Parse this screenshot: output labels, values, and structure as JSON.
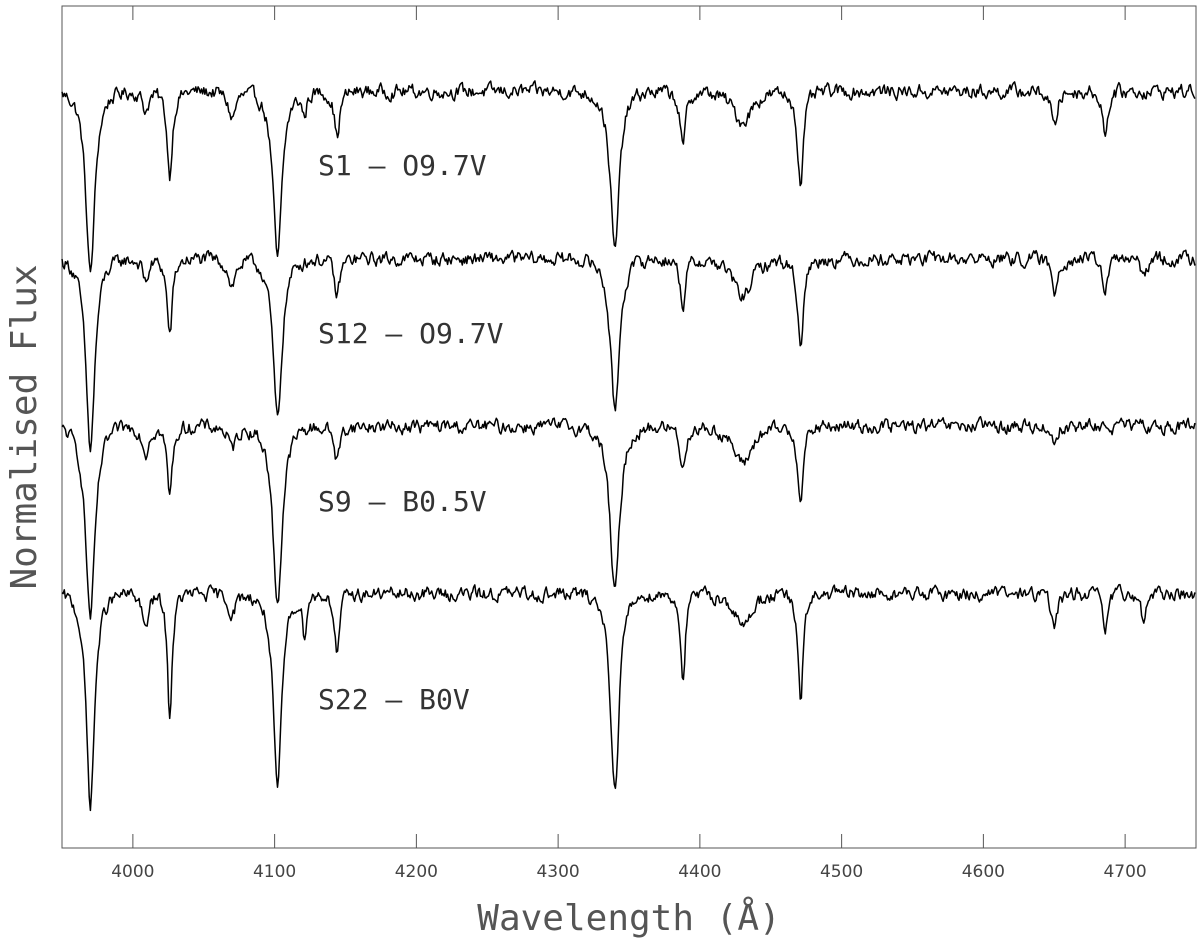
{
  "chart_data": {
    "type": "line",
    "title": "",
    "xlabel": "Wavelength (Å)",
    "ylabel": "Normalised Flux",
    "xlim": [
      3950,
      4750
    ],
    "xticks": [
      4000,
      4100,
      4200,
      4300,
      4400,
      4500,
      4600,
      4700
    ],
    "tick_labels": [
      "4000",
      "4100",
      "4200",
      "4300",
      "4400",
      "4500",
      "4600",
      "4700"
    ],
    "y_tick_labels_shown": false,
    "grid": false,
    "note": "",
    "series": [
      {
        "name": "S1 – O9.7V",
        "label": "S1 – O9.7V",
        "offset": 3.0,
        "lines": [
          {
            "center": 3970,
            "depth": 0.48,
            "width": 3.0
          },
          {
            "center": 4009,
            "depth": 0.05,
            "width": 2.0
          },
          {
            "center": 4026,
            "depth": 0.22,
            "width": 1.8
          },
          {
            "center": 4070,
            "depth": 0.07,
            "width": 2.5
          },
          {
            "center": 4102,
            "depth": 0.44,
            "width": 3.0
          },
          {
            "center": 4121,
            "depth": 0.06,
            "width": 1.5
          },
          {
            "center": 4144,
            "depth": 0.12,
            "width": 1.8
          },
          {
            "center": 4340,
            "depth": 0.42,
            "width": 3.0
          },
          {
            "center": 4388,
            "depth": 0.15,
            "width": 1.8
          },
          {
            "center": 4430,
            "depth": 0.08,
            "width": 6.0
          },
          {
            "center": 4471,
            "depth": 0.24,
            "width": 2.0
          },
          {
            "center": 4650,
            "depth": 0.1,
            "width": 1.8
          },
          {
            "center": 4686,
            "depth": 0.12,
            "width": 1.6
          }
        ]
      },
      {
        "name": "S12 – O9.7V",
        "label": "S12 – O9.7V",
        "offset": 2.0,
        "lines": [
          {
            "center": 3970,
            "depth": 0.5,
            "width": 3.0
          },
          {
            "center": 4009,
            "depth": 0.06,
            "width": 2.0
          },
          {
            "center": 4026,
            "depth": 0.2,
            "width": 1.8
          },
          {
            "center": 4070,
            "depth": 0.07,
            "width": 2.5
          },
          {
            "center": 4102,
            "depth": 0.42,
            "width": 3.0
          },
          {
            "center": 4144,
            "depth": 0.1,
            "width": 1.8
          },
          {
            "center": 4340,
            "depth": 0.4,
            "width": 3.0
          },
          {
            "center": 4388,
            "depth": 0.12,
            "width": 1.8
          },
          {
            "center": 4430,
            "depth": 0.1,
            "width": 6.0
          },
          {
            "center": 4471,
            "depth": 0.22,
            "width": 2.0
          },
          {
            "center": 4650,
            "depth": 0.09,
            "width": 1.8
          },
          {
            "center": 4686,
            "depth": 0.09,
            "width": 1.6
          },
          {
            "center": 4713,
            "depth": 0.06,
            "width": 1.5
          }
        ]
      },
      {
        "name": "S9 – B0.5V",
        "label": "S9 – B0.5V",
        "offset": 1.0,
        "lines": [
          {
            "center": 3970,
            "depth": 0.5,
            "width": 3.2
          },
          {
            "center": 4009,
            "depth": 0.07,
            "width": 2.0
          },
          {
            "center": 4026,
            "depth": 0.18,
            "width": 1.8
          },
          {
            "center": 4070,
            "depth": 0.06,
            "width": 2.5
          },
          {
            "center": 4102,
            "depth": 0.46,
            "width": 3.2
          },
          {
            "center": 4144,
            "depth": 0.09,
            "width": 1.8
          },
          {
            "center": 4340,
            "depth": 0.44,
            "width": 3.2
          },
          {
            "center": 4388,
            "depth": 0.11,
            "width": 1.8
          },
          {
            "center": 4430,
            "depth": 0.1,
            "width": 6.0
          },
          {
            "center": 4471,
            "depth": 0.18,
            "width": 2.0
          },
          {
            "center": 4650,
            "depth": 0.04,
            "width": 1.8
          }
        ]
      },
      {
        "name": "S22 – B0V",
        "label": "S22 – B0V",
        "offset": 0.0,
        "lines": [
          {
            "center": 3970,
            "depth": 0.55,
            "width": 2.8
          },
          {
            "center": 4009,
            "depth": 0.1,
            "width": 1.8
          },
          {
            "center": 4026,
            "depth": 0.32,
            "width": 1.6
          },
          {
            "center": 4070,
            "depth": 0.05,
            "width": 2.5
          },
          {
            "center": 4102,
            "depth": 0.52,
            "width": 2.8
          },
          {
            "center": 4121,
            "depth": 0.1,
            "width": 1.4
          },
          {
            "center": 4144,
            "depth": 0.16,
            "width": 1.6
          },
          {
            "center": 4340,
            "depth": 0.52,
            "width": 2.8
          },
          {
            "center": 4388,
            "depth": 0.22,
            "width": 1.6
          },
          {
            "center": 4430,
            "depth": 0.09,
            "width": 5.0
          },
          {
            "center": 4471,
            "depth": 0.28,
            "width": 1.8
          },
          {
            "center": 4650,
            "depth": 0.1,
            "width": 1.6
          },
          {
            "center": 4686,
            "depth": 0.1,
            "width": 1.5
          },
          {
            "center": 4713,
            "depth": 0.08,
            "width": 1.4
          }
        ]
      }
    ],
    "line_color": "#000000",
    "frame_color": "#555555"
  }
}
